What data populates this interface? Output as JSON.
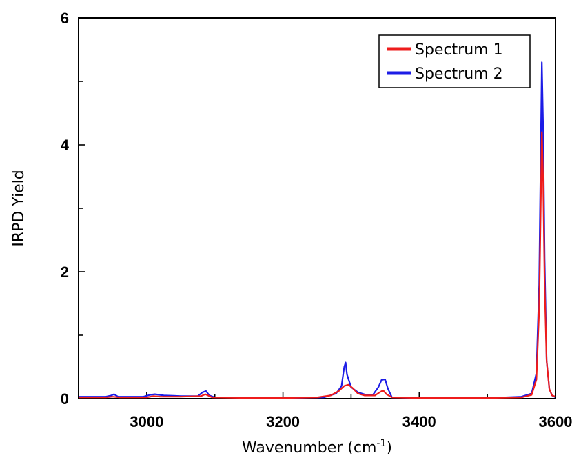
{
  "chart_data": {
    "type": "line",
    "title": "",
    "xlabel": "Wavenumber (cm",
    "xlabel_sup": "-1",
    "xlabel_end": ")",
    "ylabel": "IRPD Yield",
    "xlim": [
      2900,
      3600
    ],
    "ylim": [
      0,
      6
    ],
    "x_ticks": [
      3000,
      3200,
      3400,
      3600
    ],
    "y_ticks": [
      0,
      2,
      4,
      6
    ],
    "grid": false,
    "legend_position": "top-right",
    "series": [
      {
        "name": "Spectrum 1",
        "color": "#ee1c1c",
        "points": [
          [
            2900,
            0.02
          ],
          [
            2940,
            0.02
          ],
          [
            2950,
            0.03
          ],
          [
            2960,
            0.02
          ],
          [
            3000,
            0.02
          ],
          [
            3010,
            0.04
          ],
          [
            3020,
            0.03
          ],
          [
            3050,
            0.03
          ],
          [
            3080,
            0.04
          ],
          [
            3086,
            0.07
          ],
          [
            3090,
            0.05
          ],
          [
            3096,
            0.02
          ],
          [
            3150,
            0.01
          ],
          [
            3200,
            0.01
          ],
          [
            3250,
            0.02
          ],
          [
            3270,
            0.05
          ],
          [
            3282,
            0.12
          ],
          [
            3290,
            0.2
          ],
          [
            3296,
            0.22
          ],
          [
            3302,
            0.17
          ],
          [
            3310,
            0.08
          ],
          [
            3320,
            0.05
          ],
          [
            3335,
            0.05
          ],
          [
            3342,
            0.1
          ],
          [
            3347,
            0.13
          ],
          [
            3352,
            0.07
          ],
          [
            3360,
            0.02
          ],
          [
            3400,
            0.01
          ],
          [
            3450,
            0.01
          ],
          [
            3500,
            0.01
          ],
          [
            3550,
            0.02
          ],
          [
            3565,
            0.06
          ],
          [
            3572,
            0.3
          ],
          [
            3576,
            1.4
          ],
          [
            3578,
            2.8
          ],
          [
            3580,
            4.2
          ],
          [
            3582,
            3.4
          ],
          [
            3584,
            1.8
          ],
          [
            3587,
            0.6
          ],
          [
            3591,
            0.15
          ],
          [
            3595,
            0.05
          ],
          [
            3600,
            0.03
          ]
        ]
      },
      {
        "name": "Spectrum 2",
        "color": "#1c1ce6",
        "points": [
          [
            2900,
            0.03
          ],
          [
            2940,
            0.03
          ],
          [
            2948,
            0.05
          ],
          [
            2952,
            0.07
          ],
          [
            2958,
            0.03
          ],
          [
            2995,
            0.03
          ],
          [
            3005,
            0.06
          ],
          [
            3012,
            0.07
          ],
          [
            3025,
            0.05
          ],
          [
            3050,
            0.04
          ],
          [
            3075,
            0.04
          ],
          [
            3082,
            0.1
          ],
          [
            3087,
            0.12
          ],
          [
            3092,
            0.05
          ],
          [
            3100,
            0.02
          ],
          [
            3200,
            0.01
          ],
          [
            3260,
            0.02
          ],
          [
            3278,
            0.08
          ],
          [
            3286,
            0.2
          ],
          [
            3290,
            0.5
          ],
          [
            3292,
            0.57
          ],
          [
            3294,
            0.38
          ],
          [
            3300,
            0.18
          ],
          [
            3310,
            0.1
          ],
          [
            3322,
            0.06
          ],
          [
            3332,
            0.06
          ],
          [
            3340,
            0.18
          ],
          [
            3345,
            0.3
          ],
          [
            3350,
            0.3
          ],
          [
            3354,
            0.16
          ],
          [
            3360,
            0.02
          ],
          [
            3400,
            0.01
          ],
          [
            3500,
            0.01
          ],
          [
            3550,
            0.03
          ],
          [
            3565,
            0.08
          ],
          [
            3572,
            0.4
          ],
          [
            3576,
            1.8
          ],
          [
            3578,
            3.6
          ],
          [
            3580,
            5.3
          ],
          [
            3582,
            4.2
          ],
          [
            3584,
            2.2
          ],
          [
            3587,
            0.6
          ],
          [
            3591,
            0.15
          ],
          [
            3595,
            0.05
          ],
          [
            3600,
            0.02
          ]
        ]
      }
    ]
  }
}
